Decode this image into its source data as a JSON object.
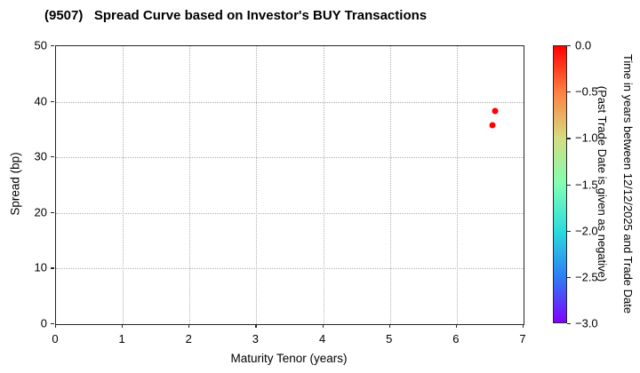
{
  "title": "(9507)   Spread Curve based on Investor's BUY Transactions",
  "chart_data": {
    "type": "scatter",
    "title": "(9507)   Spread Curve based on Investor's BUY Transactions",
    "xlabel": "Maturity Tenor (years)",
    "ylabel": "Spread (bp)",
    "xlim": [
      0,
      7
    ],
    "ylim": [
      0,
      50
    ],
    "xticks": [
      0,
      1,
      2,
      3,
      4,
      5,
      6,
      7
    ],
    "yticks": [
      0,
      10,
      20,
      30,
      40,
      50
    ],
    "grid": true,
    "legend_position": "none",
    "points": [
      {
        "x": 6.57,
        "y": 38.4,
        "color_value": 0.0,
        "color": "#ff0000"
      },
      {
        "x": 6.54,
        "y": 35.8,
        "color_value": 0.0,
        "color": "#ff0000"
      }
    ],
    "colorbar": {
      "label_line1": "Time in years between 12/12/2025 and Trade Date",
      "label_line2": "(Past Trade Date is given as negative)",
      "tick_labels": [
        "0.0",
        "−0.5",
        "−1.0",
        "−1.5",
        "−2.0",
        "−2.5",
        "−3.0"
      ],
      "vmax": 0.0,
      "vmin": -3.0,
      "colormap": "rainbow (red=0.0 top, violet=-3.0 bottom)",
      "gradient_stops_top_to_bottom": [
        "#ff0000",
        "#ff8042",
        "#d5dd80",
        "#80ffb4",
        "#2bdddd",
        "#2b80f6",
        "#8000ff"
      ]
    }
  }
}
